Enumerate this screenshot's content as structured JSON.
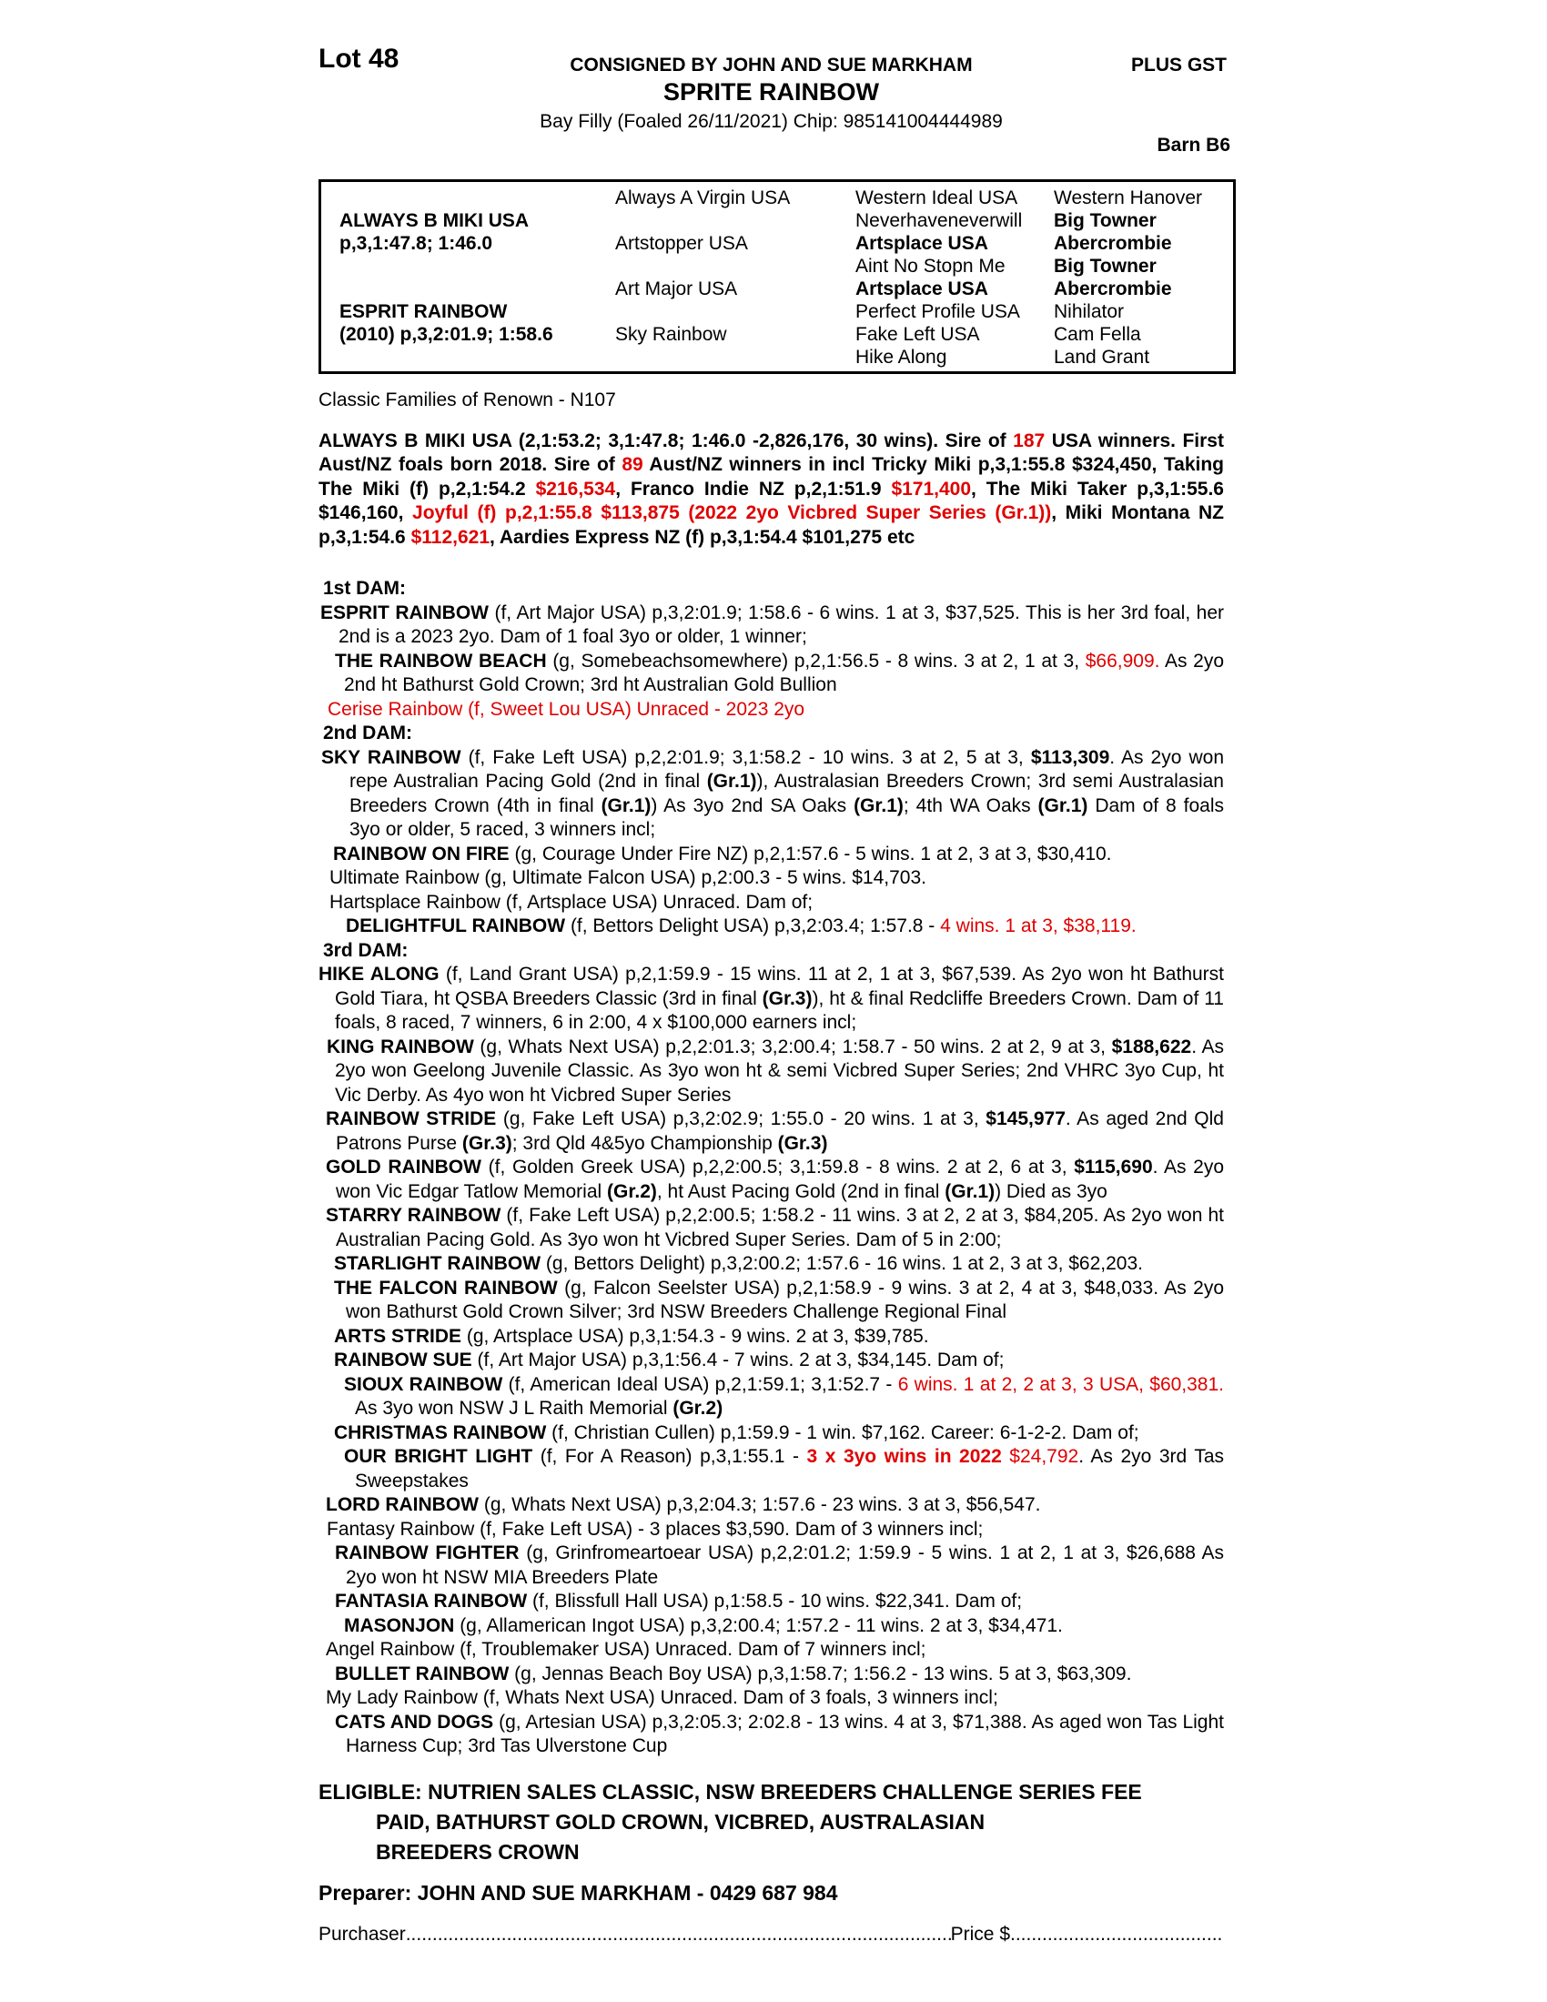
{
  "header": {
    "lot": "Lot 48",
    "consigned": "CONSIGNED BY JOHN AND SUE MARKHAM",
    "plus_gst": "PLUS GST",
    "horse_name": "SPRITE RAINBOW",
    "foaling": "Bay Filly (Foaled 26/11/2021) Chip: 985141004444989",
    "barn": "Barn B6"
  },
  "pedigree_table": {
    "rows": [
      [
        {
          "t": ""
        },
        {
          "t": "Always A Virgin USA"
        },
        {
          "t": "Western Ideal USA"
        },
        {
          "t": "Western Hanover"
        }
      ],
      [
        {
          "t": "ALWAYS B MIKI USA",
          "b": true
        },
        {
          "t": ""
        },
        {
          "t": "Neverhaveneverwill"
        },
        {
          "t": "Big Towner",
          "b": true
        }
      ],
      [
        {
          "t": "p,3,1:47.8; 1:46.0",
          "b": true
        },
        {
          "t": "Artstopper USA"
        },
        {
          "t": "Artsplace USA",
          "b": true
        },
        {
          "t": "Abercrombie",
          "b": true
        }
      ],
      [
        {
          "t": ""
        },
        {
          "t": ""
        },
        {
          "t": "Aint No Stopn Me"
        },
        {
          "t": "Big Towner",
          "b": true
        }
      ],
      [
        {
          "t": ""
        },
        {
          "t": "Art Major USA"
        },
        {
          "t": "Artsplace USA",
          "b": true
        },
        {
          "t": "Abercrombie",
          "b": true
        }
      ],
      [
        {
          "t": "ESPRIT RAINBOW",
          "b": true
        },
        {
          "t": ""
        },
        {
          "t": "Perfect Profile USA"
        },
        {
          "t": "Nihilator"
        }
      ],
      [
        {
          "t": "(2010) p,3,2:01.9; 1:58.6",
          "b": true
        },
        {
          "t": "Sky Rainbow"
        },
        {
          "t": "Fake Left USA"
        },
        {
          "t": "Cam Fella"
        }
      ],
      [
        {
          "t": ""
        },
        {
          "t": ""
        },
        {
          "t": "Hike Along"
        },
        {
          "t": "Land Grant"
        }
      ]
    ]
  },
  "classic_families": "Classic Families of Renown - N107",
  "sire_paragraph": [
    {
      "t": "ALWAYS B MIKI USA (2,1:53.2; 3,1:47.8; 1:46.0 -2,826,176, 30 wins). Sire of "
    },
    {
      "t": "187",
      "r": true
    },
    {
      "t": " USA winners. First Aust/NZ foals born 2018. Sire of "
    },
    {
      "t": "89",
      "r": true
    },
    {
      "t": " Aust/NZ winners in incl Tricky Miki p,3,1:55.8 $324,450, Taking The Miki (f) p,2,1:54.2 "
    },
    {
      "t": "$216,534",
      "r": true
    },
    {
      "t": ", Franco Indie NZ p,2,1:51.9 "
    },
    {
      "t": "$171,400",
      "r": true
    },
    {
      "t": ", The Miki Taker p,3,1:55.6 $146,160, "
    },
    {
      "t": "Joyful (f) p,2,1:55.8 $113,875 (2022 2yo Vicbred Super Series (Gr.1))",
      "r": true
    },
    {
      "t": ", Miki Montana NZ p,3,1:54.6 "
    },
    {
      "t": "$112,621",
      "r": true
    },
    {
      "t": ", Aardies Express NZ (f) p,3,1:54.4 $101,275 etc"
    }
  ],
  "dam_sections": [
    {
      "heading": "1st DAM:",
      "items": [
        {
          "ind": 2,
          "hang": 22,
          "seg": [
            {
              "t": "ESPRIT RAINBOW ",
              "b": true
            },
            {
              "t": "(f, Art Major USA) p,3,2:01.9; 1:58.6 - 6 wins. 1 at 3, $37,525. This is her 3rd foal, her 2nd is a 2023 2yo. Dam of 1 foal 3yo or older, 1 winner;"
            }
          ]
        },
        {
          "ind": 18,
          "hang": 28,
          "seg": [
            {
              "t": "THE RAINBOW BEACH ",
              "b": true
            },
            {
              "t": "(g, Somebeachsomewhere) p,2,1:56.5 - 8 wins. 3 at 2, 1 at 3, "
            },
            {
              "t": "$66,909.",
              "r": true
            },
            {
              "t": " As 2yo 2nd ht Bathurst Gold Crown; 3rd ht Australian Gold Bullion"
            }
          ]
        },
        {
          "ind": 10,
          "hang": 20,
          "seg": [
            {
              "t": "Cerise Rainbow (f, Sweet Lou USA) Unraced - 2023 2yo",
              "r": true
            }
          ]
        }
      ]
    },
    {
      "heading": "2nd DAM:",
      "items": [
        {
          "ind": 3,
          "hang": 34,
          "seg": [
            {
              "t": "SKY RAINBOW ",
              "b": true
            },
            {
              "t": "(f, Fake Left USA) p,2,2:01.9; 3,1:58.2 - 10 wins. 3 at 2, 5 at 3, "
            },
            {
              "t": "$113,309",
              "b": true
            },
            {
              "t": ". As 2yo won repe Australian Pacing Gold (2nd in final "
            },
            {
              "t": "(Gr.1)",
              "b": true
            },
            {
              "t": "), Australasian Breeders Crown; 3rd semi Australasian Breeders Crown (4th in final "
            },
            {
              "t": "(Gr.1)",
              "b": true
            },
            {
              "t": ") As 3yo 2nd SA Oaks "
            },
            {
              "t": "(Gr.1)",
              "b": true
            },
            {
              "t": "; 4th WA Oaks "
            },
            {
              "t": "(Gr.1)",
              "b": true
            },
            {
              "t": " Dam of 8 foals 3yo or older, 5 raced, 3 winners incl;"
            }
          ]
        },
        {
          "ind": 16,
          "hang": 26,
          "seg": [
            {
              "t": "RAINBOW ON FIRE ",
              "b": true
            },
            {
              "t": "(g, Courage Under Fire NZ) p,2,1:57.6 - 5 wins. 1 at 2, 3 at 3, $30,410."
            }
          ]
        },
        {
          "ind": 12,
          "hang": 22,
          "seg": [
            {
              "t": "Ultimate Rainbow (g, Ultimate Falcon USA) p,2:00.3 - 5 wins. $14,703."
            }
          ]
        },
        {
          "ind": 12,
          "hang": 22,
          "seg": [
            {
              "t": "Hartsplace Rainbow (f, Artsplace USA) Unraced. Dam of;"
            }
          ]
        },
        {
          "ind": 30,
          "hang": 40,
          "seg": [
            {
              "t": "DELIGHTFUL RAINBOW ",
              "b": true
            },
            {
              "t": "(f, Bettors Delight USA) p,3,2:03.4; 1:57.8 - "
            },
            {
              "t": "4 wins. 1 at 3, $38,119.",
              "r": true
            }
          ]
        }
      ]
    },
    {
      "heading": "3rd DAM:",
      "items": [
        {
          "ind": 0,
          "hang": 18,
          "seg": [
            {
              "t": "HIKE ALONG ",
              "b": true
            },
            {
              "t": "(f, Land Grant USA) p,2,1:59.9 - 15 wins. 11 at 2, 1 at 3, $67,539. As 2yo won ht Bathurst Gold Tiara, ht QSBA Breeders Classic (3rd in final "
            },
            {
              "t": "(Gr.3)",
              "b": true
            },
            {
              "t": "), ht & final Redcliffe Breeders Crown. Dam of 11 foals, 8 raced, 7 winners, 6 in 2:00, 4 x $100,000 earners incl;"
            }
          ]
        },
        {
          "ind": 9,
          "hang": 18,
          "seg": [
            {
              "t": "KING RAINBOW ",
              "b": true
            },
            {
              "t": "(g, Whats Next USA) p,2,2:01.3; 3,2:00.4; 1:58.7 - 50 wins. 2 at 2, 9 at 3, "
            },
            {
              "t": "$188,622",
              "b": true
            },
            {
              "t": ". As 2yo won Geelong Juvenile Classic. As 3yo won ht & semi Vicbred Super Series; 2nd VHRC 3yo Cup, ht Vic Derby. As 4yo won ht Vicbred Super Series"
            }
          ]
        },
        {
          "ind": 8,
          "hang": 19,
          "seg": [
            {
              "t": "RAINBOW STRIDE ",
              "b": true
            },
            {
              "t": "(g, Fake Left USA) p,3,2:02.9; 1:55.0 - 20 wins. 1 at 3, "
            },
            {
              "t": "$145,977",
              "b": true
            },
            {
              "t": ". As aged 2nd Qld Patrons Purse "
            },
            {
              "t": "(Gr.3)",
              "b": true
            },
            {
              "t": "; 3rd Qld 4&5yo Championship "
            },
            {
              "t": "(Gr.3)",
              "b": true
            }
          ]
        },
        {
          "ind": 8,
          "hang": 19,
          "seg": [
            {
              "t": "GOLD RAINBOW ",
              "b": true
            },
            {
              "t": "(f, Golden Greek USA) p,2,2:00.5; 3,1:59.8 - 8 wins. 2 at 2, 6 at 3, "
            },
            {
              "t": "$115,690",
              "b": true
            },
            {
              "t": ". As 2yo won Vic Edgar Tatlow Memorial "
            },
            {
              "t": "(Gr.2)",
              "b": true
            },
            {
              "t": ", ht Aust Pacing Gold (2nd in final "
            },
            {
              "t": "(Gr.1)",
              "b": true
            },
            {
              "t": ") Died as 3yo"
            }
          ]
        },
        {
          "ind": 8,
          "hang": 19,
          "seg": [
            {
              "t": "STARRY RAINBOW ",
              "b": true
            },
            {
              "t": "(f, Fake Left USA) p,2,2:00.5; 1:58.2 - 11 wins. 3 at 2, 2 at 3, $84,205. As 2yo won ht Australian Pacing Gold. As 3yo won ht Vicbred Super Series. Dam of 5 in 2:00;"
            }
          ]
        },
        {
          "ind": 17,
          "hang": 27,
          "seg": [
            {
              "t": "STARLIGHT RAINBOW ",
              "b": true
            },
            {
              "t": "(g, Bettors Delight) p,3,2:00.2; 1:57.6 - 16 wins. 1 at 2, 3 at 3, $62,203."
            }
          ]
        },
        {
          "ind": 17,
          "hang": 30,
          "seg": [
            {
              "t": "THE FALCON RAINBOW ",
              "b": true
            },
            {
              "t": "(g, Falcon Seelster USA) p,2,1:58.9 - 9 wins. 3 at 2, 4 at 3, $48,033. As 2yo won Bathurst Gold Crown Silver; 3rd NSW Breeders Challenge Regional Final"
            }
          ]
        },
        {
          "ind": 17,
          "hang": 27,
          "seg": [
            {
              "t": "ARTS STRIDE ",
              "b": true
            },
            {
              "t": "(g, Artsplace USA) p,3,1:54.3 - 9 wins. 2 at 3, $39,785."
            }
          ]
        },
        {
          "ind": 17,
          "hang": 27,
          "seg": [
            {
              "t": "RAINBOW SUE ",
              "b": true
            },
            {
              "t": "(f, Art Major USA) p,3,1:56.4 - 7 wins. 2 at 3, $34,145. Dam of;"
            }
          ]
        },
        {
          "ind": 28,
          "hang": 40,
          "seg": [
            {
              "t": "SIOUX RAINBOW ",
              "b": true
            },
            {
              "t": "(f, American Ideal USA) p,2,1:59.1; 3,1:52.7 - "
            },
            {
              "t": "6 wins. 1 at 2, 2 at 3, 3 USA, $60,381.",
              "r": true
            },
            {
              "t": " As 3yo won NSW J L Raith Memorial "
            },
            {
              "t": "(Gr.2)",
              "b": true
            }
          ]
        },
        {
          "ind": 17,
          "hang": 27,
          "seg": [
            {
              "t": "CHRISTMAS RAINBOW ",
              "b": true
            },
            {
              "t": "(f, Christian Cullen) p,1:59.9 - 1 win. $7,162. Career: 6-1-2-2. Dam of;"
            }
          ]
        },
        {
          "ind": 28,
          "hang": 40,
          "seg": [
            {
              "t": "OUR BRIGHT LIGHT ",
              "b": true
            },
            {
              "t": "(f, For A Reason) p,3,1:55.1 - "
            },
            {
              "t": "3 x 3yo wins in 2022",
              "b": true,
              "r": true
            },
            {
              "t": " $24,792",
              "r": true
            },
            {
              "t": ". As 2yo 3rd Tas Sweepstakes"
            }
          ]
        },
        {
          "ind": 8,
          "hang": 18,
          "seg": [
            {
              "t": "LORD RAINBOW ",
              "b": true
            },
            {
              "t": "(g, Whats Next USA) p,3,2:04.3; 1:57.6 - 23 wins. 3 at 3, $56,547."
            }
          ]
        },
        {
          "ind": 9,
          "hang": 18,
          "seg": [
            {
              "t": "Fantasy Rainbow (f, Fake Left USA) - 3 places $3,590. Dam of 3 winners incl;"
            }
          ]
        },
        {
          "ind": 18,
          "hang": 30,
          "seg": [
            {
              "t": "RAINBOW FIGHTER ",
              "b": true
            },
            {
              "t": "(g, Grinfromeartoear USA) p,2,2:01.2; 1:59.9 - 5 wins. 1 at 2, 1 at 3, $26,688 As 2yo won ht NSW MIA Breeders Plate"
            }
          ]
        },
        {
          "ind": 18,
          "hang": 28,
          "seg": [
            {
              "t": "FANTASIA RAINBOW ",
              "b": true
            },
            {
              "t": "(f, Blissfull Hall USA) p,1:58.5 - 10 wins. $22,341. Dam of;"
            }
          ]
        },
        {
          "ind": 28,
          "hang": 38,
          "seg": [
            {
              "t": "MASONJON ",
              "b": true
            },
            {
              "t": "(g, Allamerican Ingot USA) p,3,2:00.4; 1:57.2 - 11 wins. 2 at 3, $34,471."
            }
          ]
        },
        {
          "ind": 8,
          "hang": 18,
          "seg": [
            {
              "t": "Angel Rainbow (f, Troublemaker USA) Unraced. Dam of 7 winners incl;"
            }
          ]
        },
        {
          "ind": 18,
          "hang": 28,
          "seg": [
            {
              "t": "BULLET RAINBOW ",
              "b": true
            },
            {
              "t": "(g, Jennas Beach Boy USA) p,3,1:58.7; 1:56.2 - 13 wins. 5 at 3, $63,309."
            }
          ]
        },
        {
          "ind": 8,
          "hang": 18,
          "seg": [
            {
              "t": "My Lady Rainbow (f, Whats Next USA) Unraced. Dam of 3 foals, 3 winners incl;"
            }
          ]
        },
        {
          "ind": 18,
          "hang": 30,
          "seg": [
            {
              "t": "CATS AND DOGS ",
              "b": true
            },
            {
              "t": "(g, Artesian USA) p,3,2:05.3; 2:02.8 - 13 wins. 4 at 3, $71,388. As aged won Tas Light Harness Cup; 3rd Tas Ulverstone Cup"
            }
          ]
        }
      ]
    }
  ],
  "eligible": {
    "label": "ELIGIBLE:",
    "lines": [
      "NUTRIEN SALES CLASSIC, NSW BREEDERS CHALLENGE SERIES FEE",
      "PAID, BATHURST GOLD CROWN, VICBRED, AUSTRALASIAN",
      "BREEDERS CROWN"
    ]
  },
  "preparer": "Preparer: JOHN AND SUE MARKHAM - 0429 687 984",
  "purchaser": {
    "label": "Purchaser",
    "dots1": "..........................................................................................................................................",
    "price_label": "Price $",
    "dots2": "...................................................................."
  },
  "colors": {
    "highlight_red": "#e00000",
    "text": "#000000",
    "background": "#ffffff"
  }
}
